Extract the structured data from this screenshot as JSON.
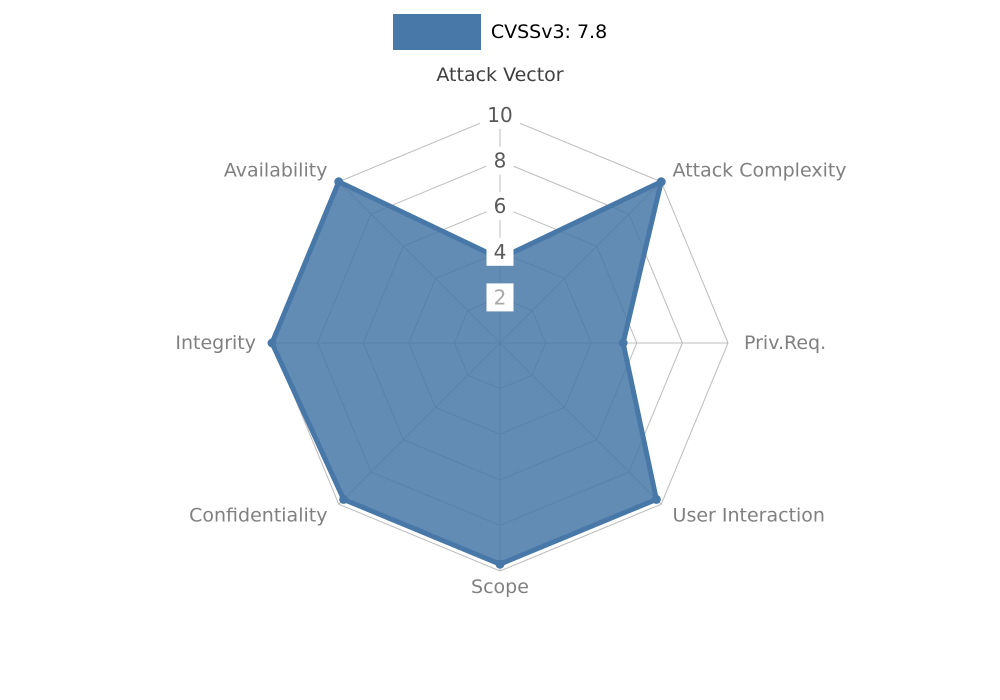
{
  "legend": {
    "label": "CVSSv3: 7.8",
    "swatch_color": "#4878a8"
  },
  "chart_data": {
    "type": "radar",
    "title": "CVSSv3: 7.8",
    "axes": [
      "Attack Vector",
      "Attack Complexity",
      "Priv.Req.",
      "User Interaction",
      "Scope",
      "Confidentiality",
      "Integrity",
      "Availability"
    ],
    "series": [
      {
        "name": "CVSSv3: 7.8",
        "values": [
          3.7,
          10,
          5.4,
          9.7,
          9.7,
          9.7,
          10,
          10
        ]
      }
    ],
    "ticks": [
      2,
      4,
      6,
      8,
      10
    ],
    "range": [
      0,
      10
    ],
    "grid": true,
    "legend_position": "top-center",
    "colors": {
      "series_fill": "#4878a8",
      "grid_line": "#bcbcbc",
      "axis_label": "#808080",
      "top_axis_label": "#3f3f3f",
      "tick_label": "#595959",
      "tick_label_innermost": "#a9a9a9",
      "tick_box_bg": "#ffffff",
      "legend_text": "#000000"
    }
  }
}
